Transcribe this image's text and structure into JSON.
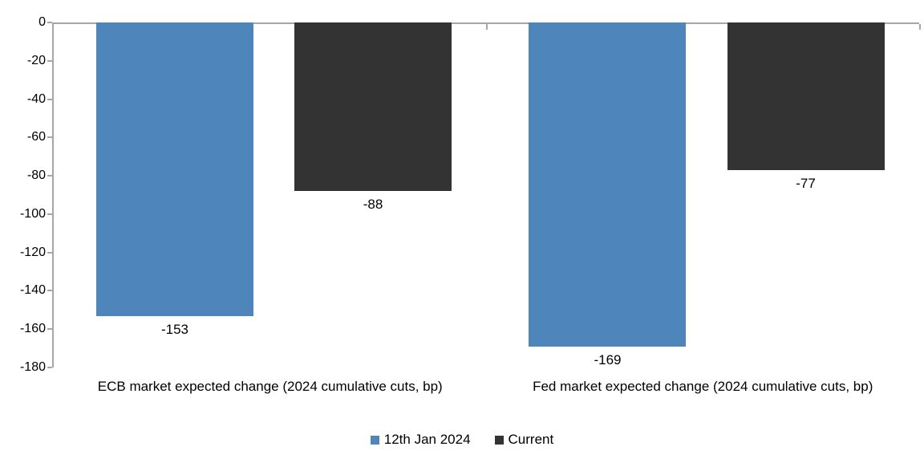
{
  "chart_data": {
    "type": "bar",
    "title": "",
    "categories": [
      "ECB market expected change (2024 cumulative cuts, bp)",
      "Fed market expected change (2024 cumulative cuts, bp)"
    ],
    "series": [
      {
        "name": "12th Jan 2024",
        "color": "#4E86BC",
        "values": [
          -153,
          -169
        ]
      },
      {
        "name": "Current",
        "color": "#333333",
        "values": [
          -88,
          -77
        ]
      }
    ],
    "ylim": [
      -180,
      0
    ],
    "y_tick_step": 20,
    "y_ticks": [
      0,
      -20,
      -40,
      -60,
      -80,
      -100,
      -120,
      -140,
      -160,
      -180
    ],
    "data_labels": [
      -153,
      -88,
      -169,
      -77
    ],
    "grid": false,
    "legend_position": "bottom",
    "axis_color": "#A6A6A6",
    "text_color": "#000000",
    "background_color": "#FFFFFF"
  }
}
